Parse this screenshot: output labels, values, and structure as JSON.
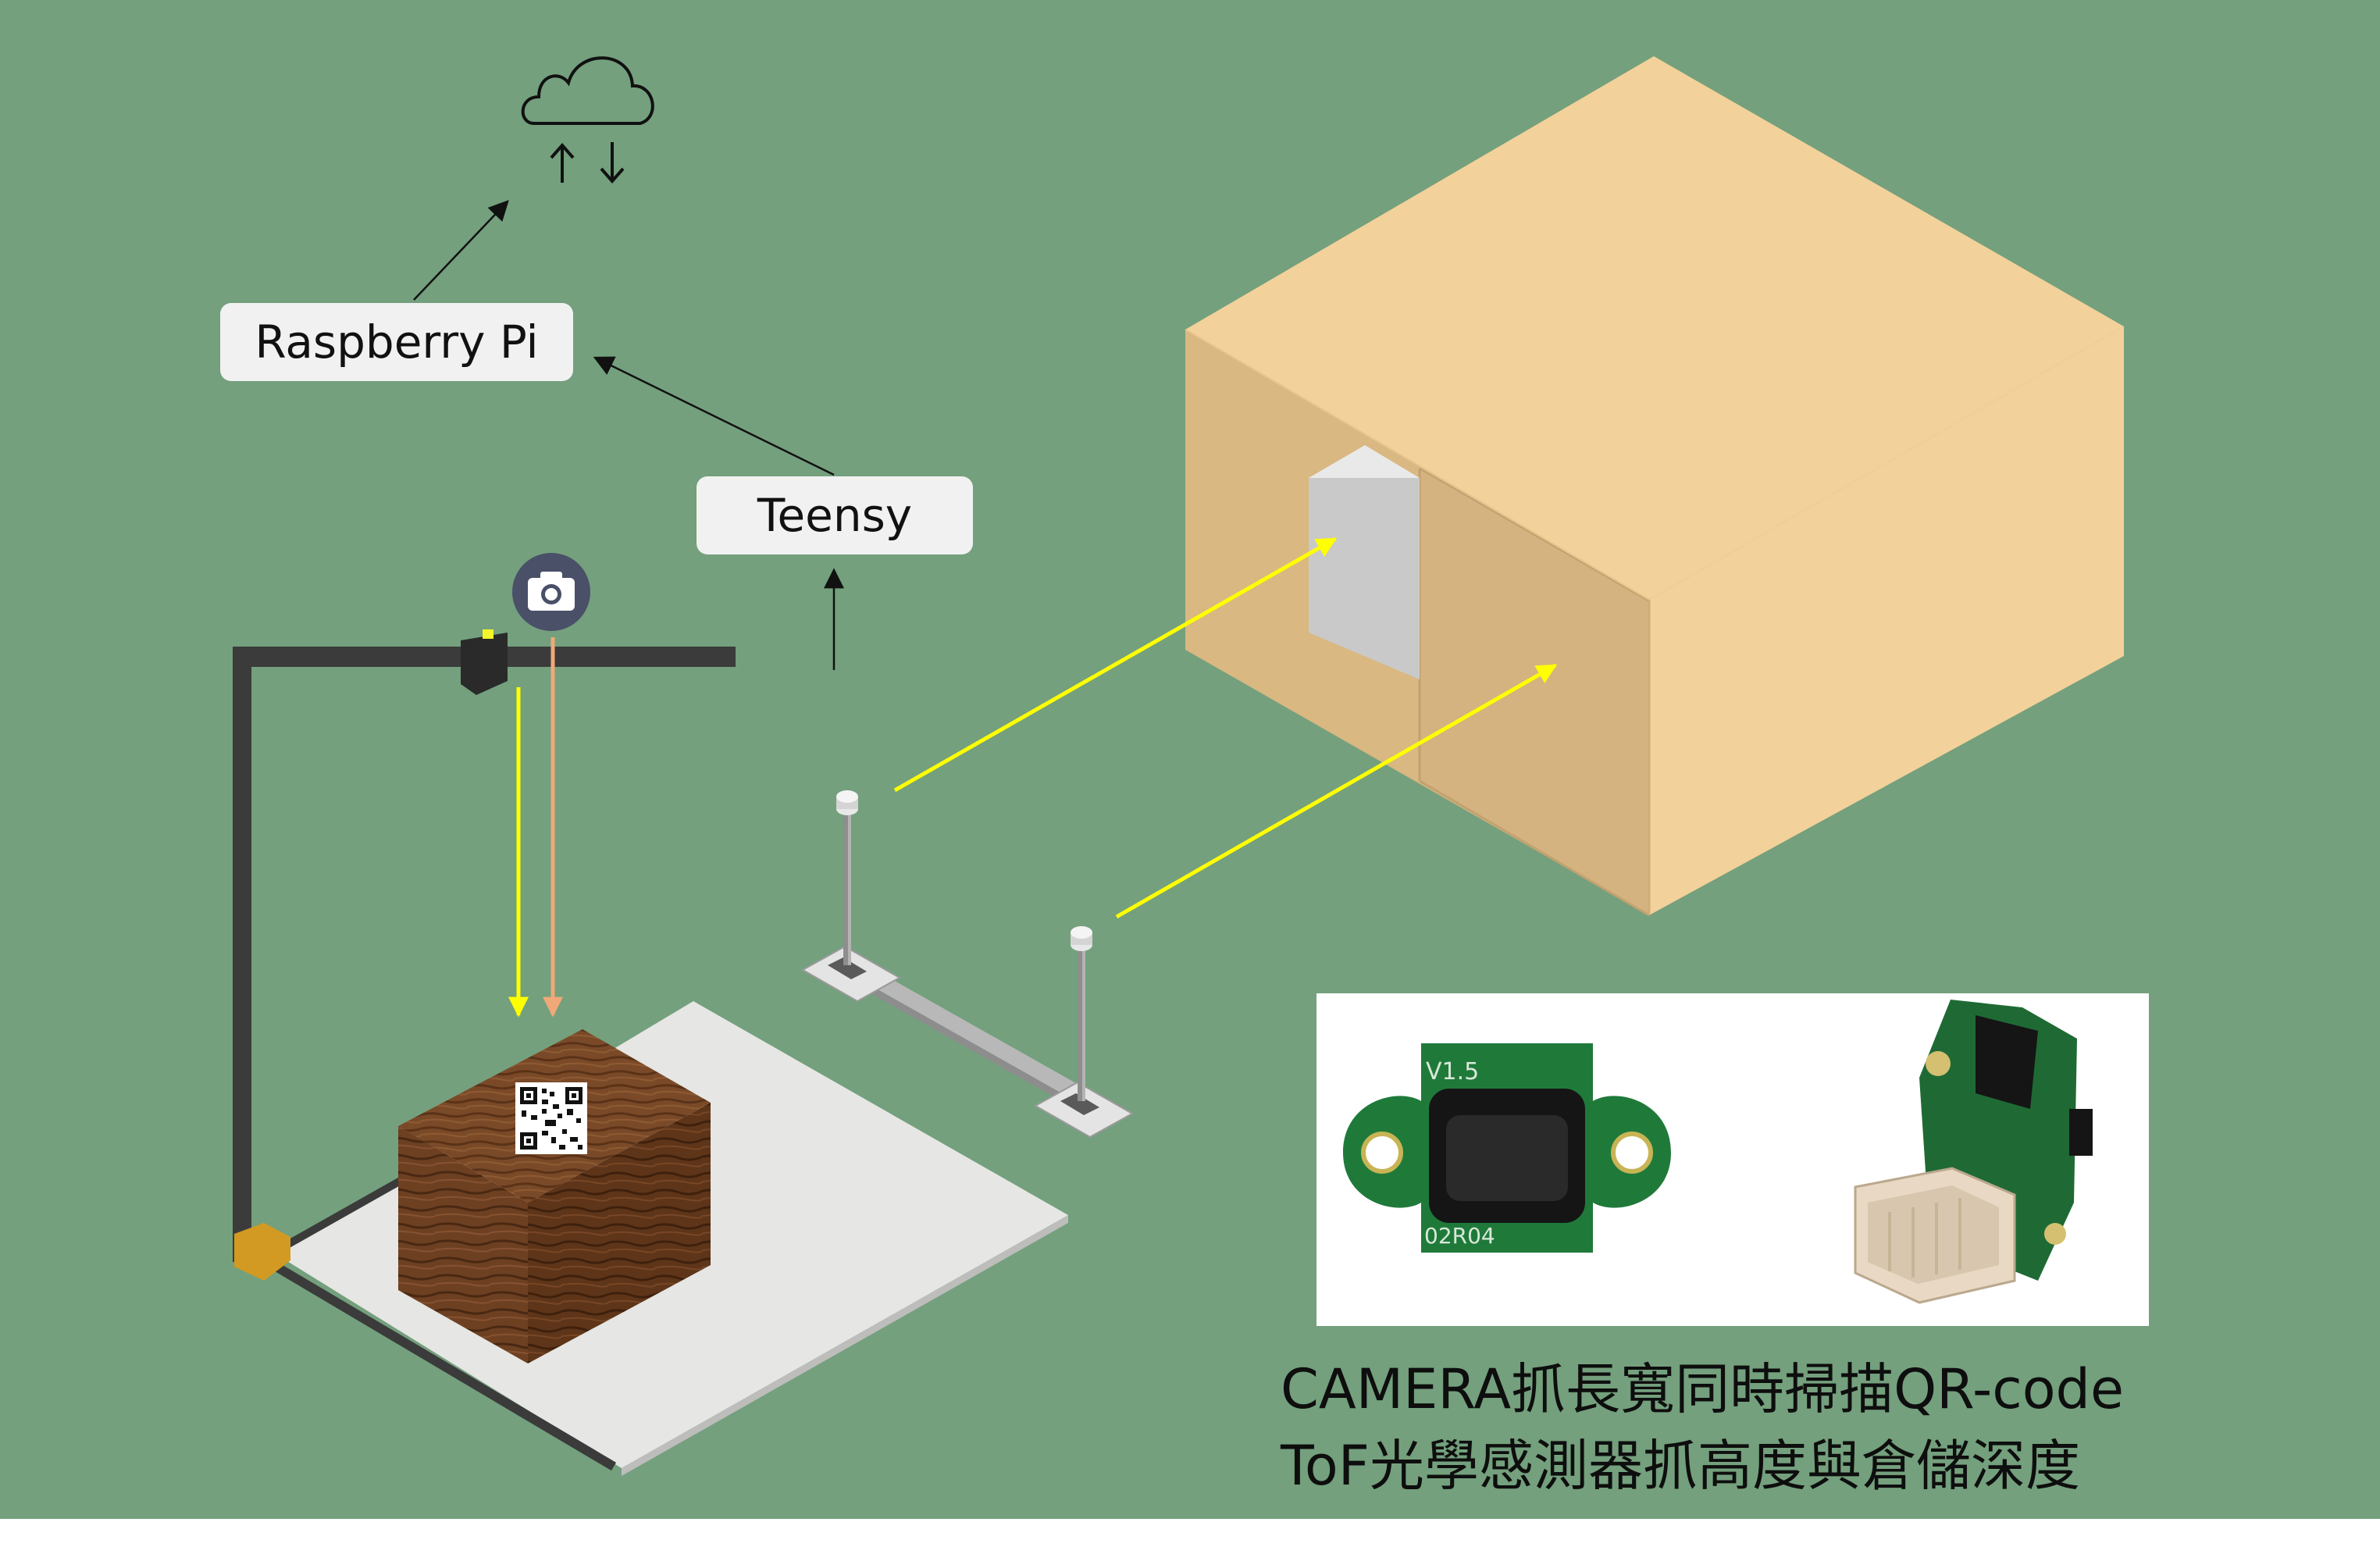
{
  "labels": {
    "raspberry_pi": "Raspberry Pi",
    "teensy": "Teensy"
  },
  "photo_panel": {
    "sensor_version_text": "V1.5",
    "sensor_code_text": "02R04"
  },
  "caption": {
    "line1": "CAMERA抓長寬同時掃描QR-code",
    "line2": "ToF光學感測器抓高度與倉儲深度"
  },
  "colors": {
    "background": "#74a07d",
    "box_front": "#f3d19a",
    "box_side": "#d4b380",
    "yellow_beam": "#ffff00",
    "orange_beam": "#f0a878",
    "frame": "#3b3b3b"
  }
}
